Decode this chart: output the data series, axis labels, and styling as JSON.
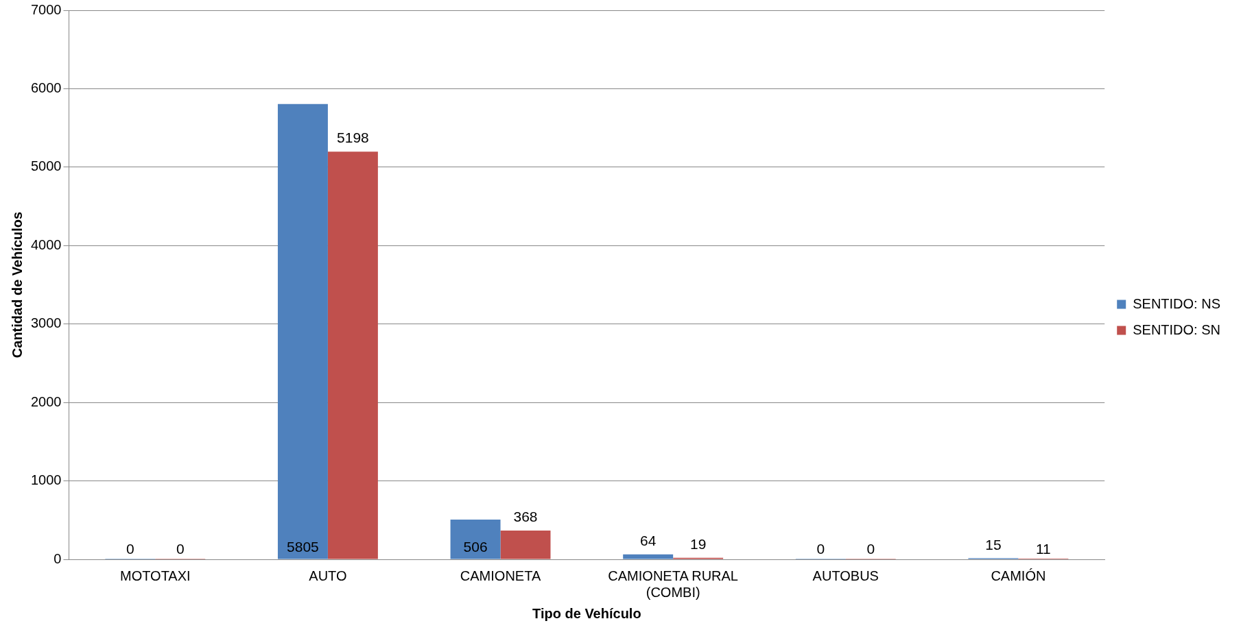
{
  "chart_data": {
    "type": "bar",
    "xlabel": "Tipo de Vehículo",
    "ylabel": "Cantidad de Vehículos",
    "categories": [
      "MOTOTAXI",
      "AUTO",
      "CAMIONETA",
      "CAMIONETA RURAL (COMBI)",
      "AUTOBUS",
      "CAMIÓN"
    ],
    "series": [
      {
        "name": "SENTIDO: NS",
        "color": "#4f81bd",
        "values": [
          0,
          5805,
          506,
          64,
          0,
          15
        ]
      },
      {
        "name": "SENTIDO: SN",
        "color": "#c0504d",
        "values": [
          0,
          5198,
          368,
          19,
          0,
          11
        ]
      }
    ],
    "ylim": [
      0,
      7000
    ],
    "yticks": [
      0,
      1000,
      2000,
      3000,
      4000,
      5000,
      6000,
      7000
    ],
    "grid": "y",
    "legend": "right",
    "data_labels": true
  }
}
